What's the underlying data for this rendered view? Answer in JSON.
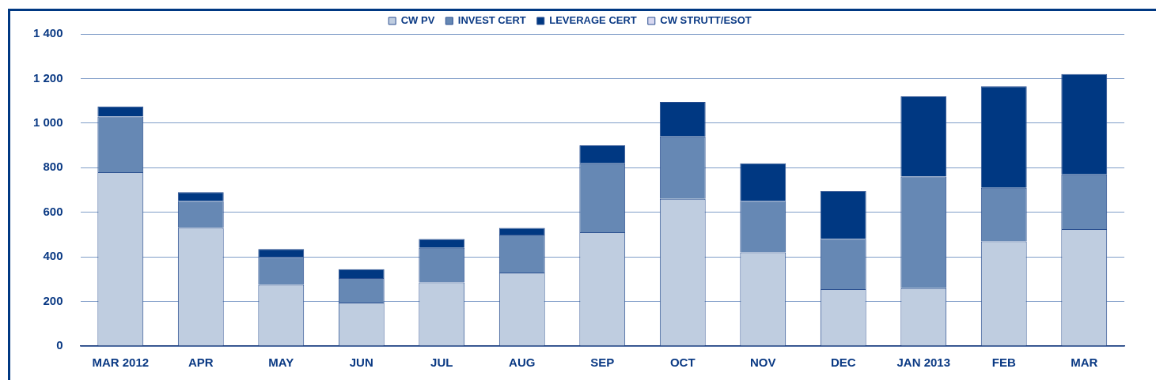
{
  "chart_data": {
    "type": "bar",
    "stacked": true,
    "categories": [
      "MAR 2012",
      "APR",
      "MAY",
      "JUN",
      "JUL",
      "AUG",
      "SEP",
      "OCT",
      "NOV",
      "DEC",
      "JAN 2013",
      "FEB",
      "MAR"
    ],
    "series": [
      {
        "name": "CW PV",
        "color": "#bfcde0",
        "values": [
          780,
          530,
          275,
          195,
          285,
          330,
          510,
          660,
          420,
          255,
          260,
          470,
          525
        ]
      },
      {
        "name": "INVEST CERT",
        "color": "#6688b4",
        "values": [
          250,
          120,
          125,
          110,
          155,
          170,
          310,
          280,
          230,
          225,
          500,
          240,
          245
        ]
      },
      {
        "name": "LEVERAGE CERT",
        "color": "#003882",
        "values": [
          45,
          40,
          35,
          40,
          40,
          30,
          80,
          155,
          170,
          215,
          360,
          455,
          450
        ]
      },
      {
        "name": "CW STRUTT/ESOT",
        "color": "#d8d8f0",
        "values": [
          0,
          0,
          0,
          0,
          0,
          0,
          0,
          0,
          0,
          0,
          0,
          0,
          0
        ]
      }
    ],
    "ylim": [
      0,
      1400
    ],
    "yticks": [
      0,
      200,
      400,
      600,
      800,
      {
        "value": 1000,
        "label": "1 000"
      },
      {
        "value": 1200,
        "label": "1 200"
      },
      {
        "value": 1400,
        "label": "1 400"
      }
    ],
    "grid": "y",
    "legend": "top"
  }
}
